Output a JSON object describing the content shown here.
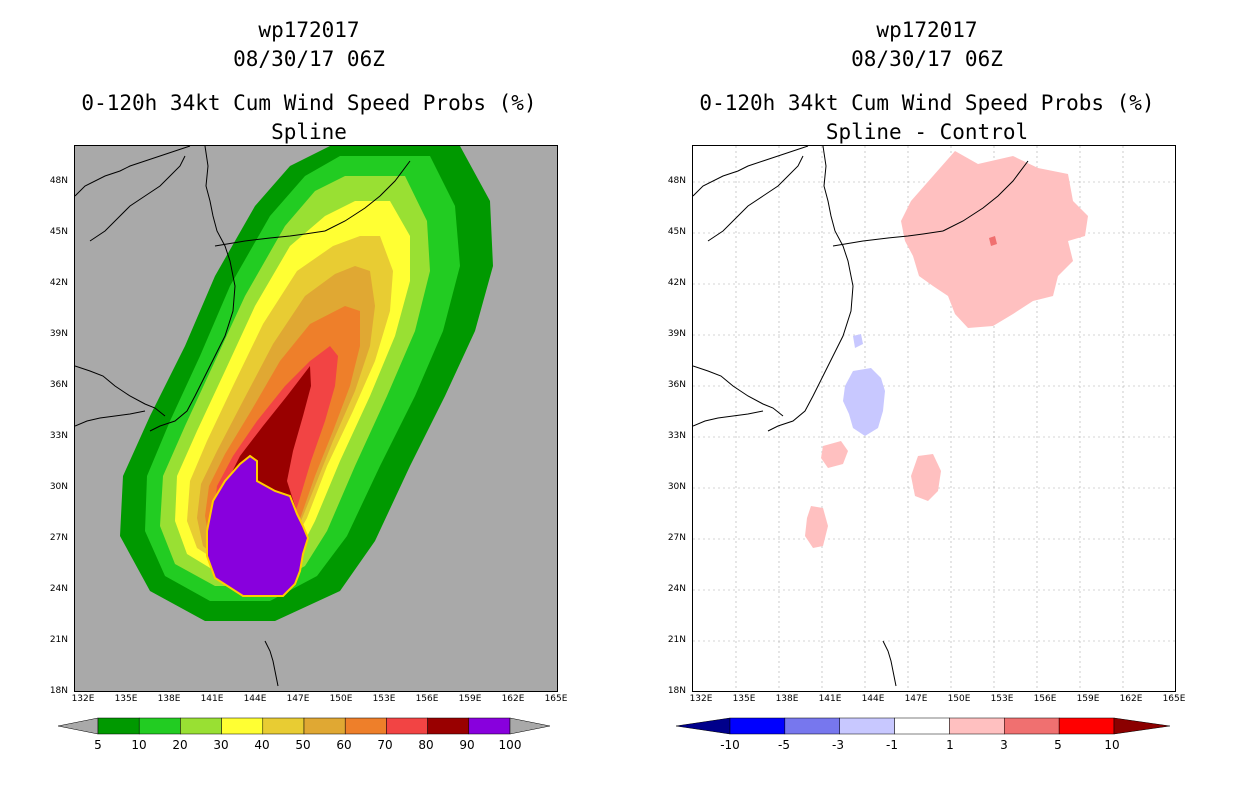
{
  "left_panel": {
    "title1": "wp172017",
    "title2": "08/30/17 06Z",
    "title3": "0-120h 34kt Cum Wind Speed Probs (%)",
    "title4": "Spline",
    "colorbar": {
      "labels": [
        "5",
        "10",
        "20",
        "30",
        "40",
        "50",
        "60",
        "70",
        "80",
        "90",
        "100"
      ],
      "colors": [
        "#009900",
        "#22cc22",
        "#99e033",
        "#ffff33",
        "#e8cc33",
        "#e0a833",
        "#ee7f2a",
        "#f24444",
        "#990000",
        "#8800dd"
      ],
      "arrow_left": "#a9a9a9",
      "arrow_right": "#a9a9a9"
    },
    "land_color": "#a9a9a9"
  },
  "right_panel": {
    "title1": "wp172017",
    "title2": "08/30/17 06Z",
    "title3": "0-120h 34kt Cum Wind Speed Probs (%)",
    "title4": "Spline - Control",
    "colorbar": {
      "labels": [
        "-10",
        "-5",
        "-3",
        "-1",
        "1",
        "3",
        "5",
        "10"
      ],
      "colors": [
        "#0000ff",
        "#7777ee",
        "#c8c8ff",
        "#ffffff",
        "#ffc0c0",
        "#f07070",
        "#ff0000"
      ],
      "arrow_left": "#00008b",
      "arrow_right": "#8b0000"
    }
  },
  "axes": {
    "lat_labels": [
      "48N",
      "45N",
      "42N",
      "39N",
      "36N",
      "33N",
      "30N",
      "27N",
      "24N",
      "21N",
      "18N"
    ],
    "lon_labels": [
      "132E",
      "135E",
      "138E",
      "141E",
      "144E",
      "147E",
      "150E",
      "153E",
      "156E",
      "159E",
      "162E",
      "165E"
    ]
  }
}
